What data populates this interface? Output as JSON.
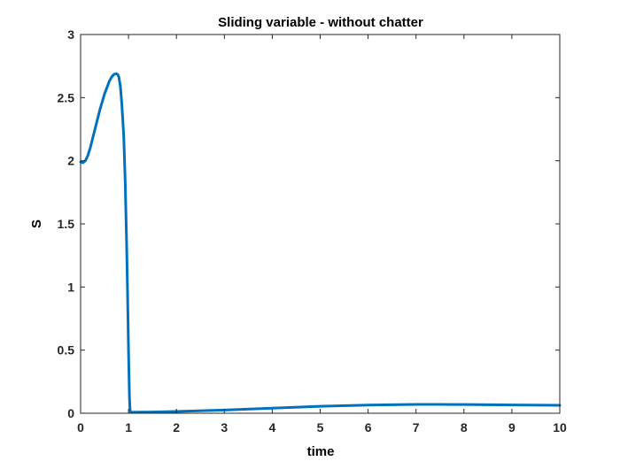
{
  "chart_data": {
    "type": "line",
    "title": "Sliding variable - without chatter",
    "xlabel": "time",
    "ylabel": "S",
    "xlim": [
      0,
      10
    ],
    "ylim": [
      0,
      3
    ],
    "xticks": [
      "0",
      "1",
      "2",
      "3",
      "4",
      "5",
      "6",
      "7",
      "8",
      "9",
      "10"
    ],
    "yticks": [
      "0",
      "0.5",
      "1",
      "1.5",
      "2",
      "2.5",
      "3"
    ],
    "grid": false,
    "legend": "none",
    "colors": {
      "line": "#0072BD",
      "axes": "#262626",
      "background": "#ffffff"
    },
    "series": [
      {
        "x": [
          0,
          0.05,
          0.1,
          0.15,
          0.2,
          0.3,
          0.4,
          0.5,
          0.6,
          0.65,
          0.7,
          0.75,
          0.78,
          0.8,
          0.83,
          0.86,
          0.9,
          0.93,
          0.96,
          0.98,
          1.0,
          1.02,
          1.03,
          1.04,
          1.05,
          1.2,
          1.5,
          2,
          3,
          4,
          5,
          6,
          7,
          7.5,
          8,
          9,
          10
        ],
        "values": [
          1.99,
          1.985,
          2.0,
          2.04,
          2.1,
          2.25,
          2.4,
          2.53,
          2.63,
          2.665,
          2.685,
          2.69,
          2.68,
          2.66,
          2.59,
          2.45,
          2.2,
          1.85,
          1.35,
          0.95,
          0.5,
          0.12,
          0.04,
          0.01,
          0.008,
          0.009,
          0.01,
          0.014,
          0.025,
          0.04,
          0.055,
          0.065,
          0.07,
          0.07,
          0.069,
          0.066,
          0.063
        ]
      }
    ]
  }
}
